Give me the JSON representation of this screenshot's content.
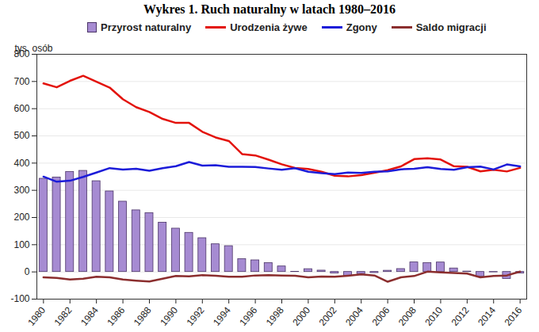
{
  "chart_data": {
    "type": "bar",
    "title": "Wykres 1. Ruch naturalny w latach 1980–2016",
    "y_label": "tys. osób",
    "x": [
      1980,
      1981,
      1982,
      1983,
      1984,
      1985,
      1986,
      1987,
      1988,
      1989,
      1990,
      1991,
      1992,
      1993,
      1994,
      1995,
      1996,
      1997,
      1998,
      1999,
      2000,
      2001,
      2002,
      2003,
      2004,
      2005,
      2006,
      2007,
      2008,
      2009,
      2010,
      2011,
      2012,
      2013,
      2014,
      2015,
      2016
    ],
    "xlim": [
      1979.5,
      2016.5
    ],
    "xticks": [
      1980,
      1982,
      1984,
      1986,
      1988,
      1990,
      1992,
      1994,
      1996,
      1998,
      2000,
      2002,
      2004,
      2006,
      2008,
      2010,
      2012,
      2014,
      2016
    ],
    "ylim": [
      -100,
      800
    ],
    "yticks": [
      -100,
      0,
      100,
      200,
      300,
      400,
      500,
      600,
      700,
      800
    ],
    "grid": true,
    "legend": "top",
    "series": [
      {
        "name": "Przyrost naturalny",
        "type": "bar",
        "color": "#a68bd2",
        "values": [
          342.6,
          347.1,
          367.3,
          371.6,
          333.7,
          296.1,
          258.4,
          226.5,
          216.1,
          181.3,
          159.3,
          143.8,
          124.2,
          101.8,
          94.9,
          47.0,
          42.7,
          32.5,
          20.3,
          0.6,
          10.3,
          5.0,
          -5.7,
          -14.1,
          -7.4,
          -3.9,
          4.5,
          10.7,
          35.1,
          32.7,
          34.8,
          12.9,
          1.5,
          -17.7,
          -1.3,
          -25.6,
          -5.8
        ]
      },
      {
        "name": "Urodzenia żywe",
        "type": "line",
        "color": "#e3120b",
        "values": [
          692.8,
          678.7,
          702.4,
          720.8,
          699.0,
          677.6,
          634.7,
          605.5,
          587.7,
          562.5,
          547.7,
          547.7,
          515.2,
          494.3,
          481.3,
          433.1,
          428.2,
          412.7,
          395.6,
          382.0,
          378.3,
          368.2,
          353.8,
          351.1,
          356.1,
          364.4,
          374.2,
          387.9,
          414.5,
          417.6,
          413.3,
          388.4,
          386.3,
          369.6,
          375.2,
          369.3,
          382.3
        ]
      },
      {
        "name": "Zgony",
        "type": "line",
        "color": "#1c1cd9",
        "values": [
          350.2,
          331.6,
          335.1,
          349.2,
          365.3,
          381.5,
          376.3,
          379.0,
          371.6,
          381.2,
          388.4,
          403.9,
          391.0,
          392.5,
          386.4,
          386.1,
          385.5,
          380.2,
          375.3,
          381.4,
          368.0,
          363.2,
          359.5,
          365.2,
          363.5,
          368.3,
          369.7,
          377.2,
          379.4,
          384.9,
          378.5,
          375.5,
          384.8,
          387.3,
          376.5,
          394.9,
          388.0
        ]
      },
      {
        "name": "Saldo migracji",
        "type": "line",
        "color": "#8b2e2e",
        "values": [
          -20,
          -22,
          -28,
          -25,
          -18,
          -20,
          -28,
          -32,
          -35,
          -25,
          -15,
          -16,
          -12,
          -14,
          -18,
          -18,
          -13,
          -12,
          -13,
          -14,
          -20,
          -17,
          -18,
          -14,
          -9,
          -13,
          -36,
          -20,
          -15,
          1,
          -2,
          -4,
          -6,
          -20,
          -15,
          -13,
          1
        ]
      }
    ]
  }
}
